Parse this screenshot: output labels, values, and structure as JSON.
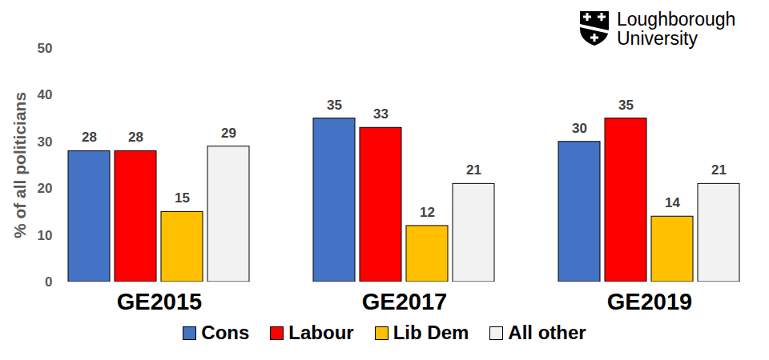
{
  "chart_data": {
    "type": "bar",
    "annotations": [
      "Loughborough",
      "University"
    ],
    "y_label": "% of all politicians",
    "categories": [
      "GE2015",
      "GE2017",
      "GE2019"
    ],
    "series": [
      {
        "name": "Cons",
        "color": "#4472c4",
        "values": [
          28,
          35,
          30
        ]
      },
      {
        "name": "Labour",
        "color": "#ff0000",
        "values": [
          28,
          33,
          35
        ]
      },
      {
        "name": "Lib Dem",
        "color": "#ffc000",
        "values": [
          15,
          12,
          14
        ]
      },
      {
        "name": "All other",
        "color": "#f2f2f2",
        "values": [
          29,
          21,
          21
        ]
      }
    ],
    "ylim": [
      0,
      50
    ],
    "yticks": [
      0,
      10,
      20,
      30,
      40,
      50
    ],
    "grid": false,
    "legend": "bottom",
    "data_labels": true
  }
}
